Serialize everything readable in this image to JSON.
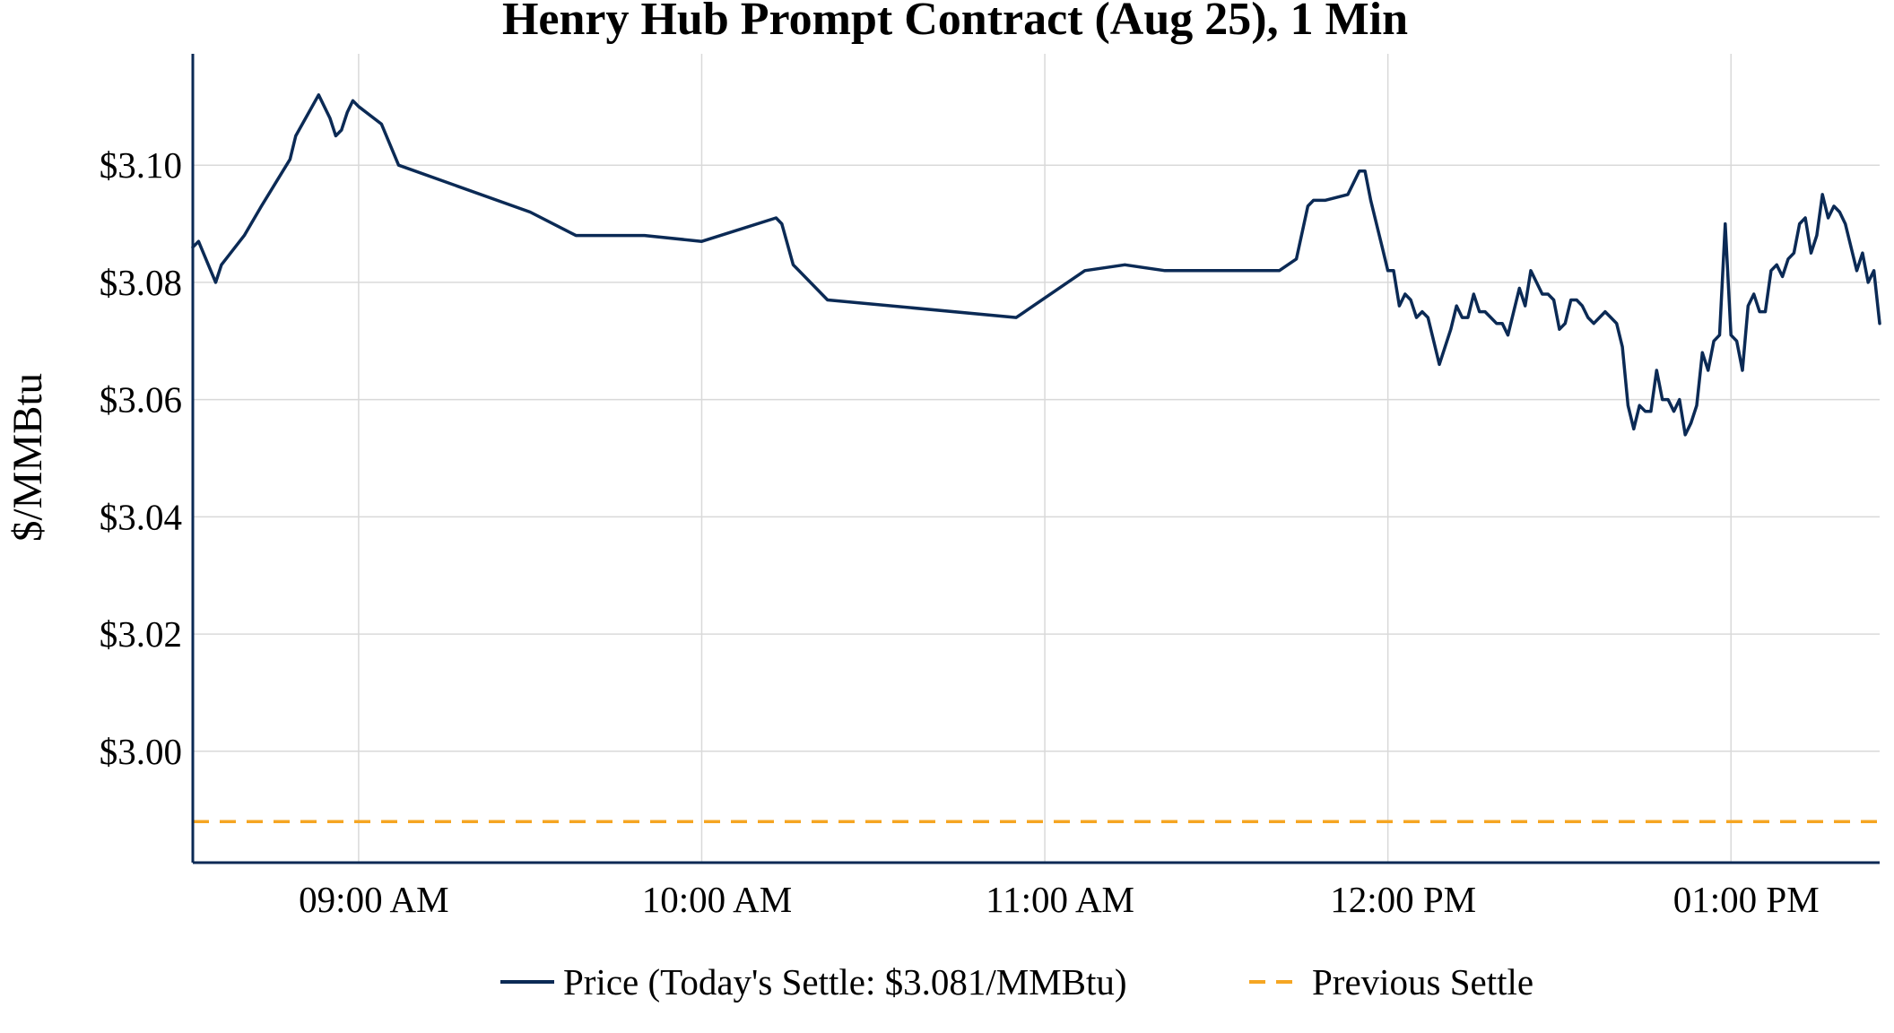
{
  "chart_data": {
    "type": "line",
    "title": "Henry Hub Prompt Contract (Aug 25), 1 Min",
    "xlabel": "",
    "ylabel": "$/MMBtu",
    "x_ticks": [
      "09:00 AM",
      "10:00 AM",
      "11:00 AM",
      "12:00 PM",
      "01:00 PM"
    ],
    "y_ticks": [
      "$3.00",
      "$3.02",
      "$3.04",
      "$3.06",
      "$3.08",
      "$3.10"
    ],
    "ylim": [
      2.981,
      3.119
    ],
    "xlim": [
      "08:31",
      "13:26"
    ],
    "grid": true,
    "legend_position": "bottom-center",
    "colors": {
      "price": "#0b2a55",
      "previous_settle": "#f5a623"
    },
    "series": [
      {
        "name": "Price (Today's Settle: $3.081/MMBtu)",
        "style": "solid",
        "x": [
          "08:31",
          "08:32",
          "08:35",
          "08:36",
          "08:40",
          "08:43",
          "08:48",
          "08:49",
          "08:53",
          "08:55",
          "08:56",
          "08:57",
          "08:58",
          "08:59",
          "09:00",
          "09:04",
          "09:07",
          "09:30",
          "09:38",
          "09:50",
          "10:00",
          "10:13",
          "10:14",
          "10:16",
          "10:22",
          "10:55",
          "11:07",
          "11:14",
          "11:21",
          "11:41",
          "11:44",
          "11:46",
          "11:47",
          "11:49",
          "11:53",
          "11:54",
          "11:55",
          "11:56",
          "11:57",
          "11:58",
          "11:59",
          "12:00",
          "12:01",
          "12:02",
          "12:03",
          "12:04",
          "12:05",
          "12:06",
          "12:07",
          "12:08",
          "12:09",
          "12:10",
          "12:11",
          "12:12",
          "12:13",
          "12:14",
          "12:15",
          "12:16",
          "12:17",
          "12:18",
          "12:19",
          "12:20",
          "12:21",
          "12:22",
          "12:23",
          "12:24",
          "12:25",
          "12:26",
          "12:27",
          "12:28",
          "12:29",
          "12:30",
          "12:31",
          "12:32",
          "12:33",
          "12:34",
          "12:35",
          "12:36",
          "12:37",
          "12:38",
          "12:39",
          "12:40",
          "12:41",
          "12:42",
          "12:43",
          "12:44",
          "12:45",
          "12:46",
          "12:47",
          "12:48",
          "12:49",
          "12:50",
          "12:51",
          "12:52",
          "12:53",
          "12:54",
          "12:55",
          "12:56",
          "12:57",
          "12:58",
          "12:59",
          "13:00",
          "13:01",
          "13:02",
          "13:03",
          "13:04",
          "13:05",
          "13:06",
          "13:07",
          "13:08",
          "13:09",
          "13:10",
          "13:11",
          "13:12",
          "13:13",
          "13:14",
          "13:15",
          "13:16",
          "13:17",
          "13:18",
          "13:19",
          "13:20",
          "13:21",
          "13:22",
          "13:23",
          "13:24",
          "13:25",
          "13:26"
        ],
        "y": [
          3.086,
          3.087,
          3.08,
          3.083,
          3.088,
          3.093,
          3.101,
          3.105,
          3.112,
          3.108,
          3.105,
          3.106,
          3.109,
          3.111,
          3.11,
          3.107,
          3.1,
          3.092,
          3.088,
          3.088,
          3.087,
          3.091,
          3.09,
          3.083,
          3.077,
          3.074,
          3.082,
          3.083,
          3.082,
          3.082,
          3.084,
          3.093,
          3.094,
          3.094,
          3.095,
          3.097,
          3.099,
          3.099,
          3.094,
          3.09,
          3.086,
          3.082,
          3.082,
          3.076,
          3.078,
          3.077,
          3.074,
          3.075,
          3.074,
          3.07,
          3.066,
          3.069,
          3.072,
          3.076,
          3.074,
          3.074,
          3.078,
          3.075,
          3.075,
          3.074,
          3.073,
          3.073,
          3.071,
          3.075,
          3.079,
          3.076,
          3.082,
          3.08,
          3.078,
          3.078,
          3.077,
          3.072,
          3.073,
          3.077,
          3.077,
          3.076,
          3.074,
          3.073,
          3.074,
          3.075,
          3.074,
          3.073,
          3.069,
          3.059,
          3.055,
          3.059,
          3.058,
          3.058,
          3.065,
          3.06,
          3.06,
          3.058,
          3.06,
          3.054,
          3.056,
          3.059,
          3.068,
          3.065,
          3.07,
          3.071,
          3.09,
          3.071,
          3.07,
          3.065,
          3.076,
          3.078,
          3.075,
          3.075,
          3.082,
          3.083,
          3.081,
          3.084,
          3.085,
          3.09,
          3.091,
          3.085,
          3.088,
          3.095,
          3.091,
          3.093,
          3.092,
          3.09,
          3.086,
          3.082,
          3.085,
          3.08,
          3.082,
          3.073
        ]
      },
      {
        "name": "Previous Settle",
        "style": "dashed",
        "value": 2.988
      }
    ]
  }
}
